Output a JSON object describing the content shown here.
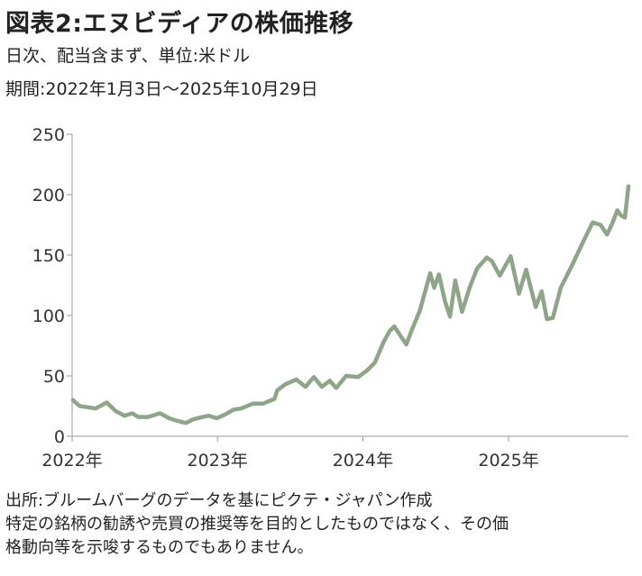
{
  "title": "図表2:エヌビディアの株価推移",
  "subtitle_1": "日次、配当含まず、単位:米ドル",
  "subtitle_2": "期間:2022年1月3日～2025年10月29日",
  "footer": {
    "source": "出所:ブルームバーグのデータを基にピクテ・ジャパン作成",
    "disclaimer_1": "特定の銘柄の勧誘や売買の推奨等を目的としたものではなく、その価",
    "disclaimer_2": "格動向等を示唆するものでもありません。"
  },
  "chart_data": {
    "type": "line",
    "title": "",
    "xlabel": "",
    "ylabel": "",
    "ylim": [
      0,
      250
    ],
    "yticks": [
      0,
      50,
      100,
      150,
      200,
      250
    ],
    "xlim": [
      "2022-01-01",
      "2025-10-29"
    ],
    "xticks": [
      {
        "date": "2022-01-01",
        "label": "2022年"
      },
      {
        "date": "2023-01-01",
        "label": "2023年"
      },
      {
        "date": "2024-01-01",
        "label": "2024年"
      },
      {
        "date": "2025-01-01",
        "label": "2025年"
      }
    ],
    "grid": false,
    "legend": "none",
    "series": [
      {
        "color": "#8fa58a",
        "points": [
          [
            "2022-01-03",
            30
          ],
          [
            "2022-01-20",
            25
          ],
          [
            "2022-02-10",
            24
          ],
          [
            "2022-03-01",
            23
          ],
          [
            "2022-03-29",
            28
          ],
          [
            "2022-04-20",
            21
          ],
          [
            "2022-05-12",
            17
          ],
          [
            "2022-06-01",
            19
          ],
          [
            "2022-06-16",
            16
          ],
          [
            "2022-07-10",
            16
          ],
          [
            "2022-08-10",
            19
          ],
          [
            "2022-09-01",
            15
          ],
          [
            "2022-09-20",
            13
          ],
          [
            "2022-10-13",
            11
          ],
          [
            "2022-11-01",
            14
          ],
          [
            "2022-11-25",
            16
          ],
          [
            "2022-12-10",
            17
          ],
          [
            "2022-12-30",
            15
          ],
          [
            "2023-01-20",
            18
          ],
          [
            "2023-02-10",
            22
          ],
          [
            "2023-03-01",
            23
          ],
          [
            "2023-03-31",
            27
          ],
          [
            "2023-04-25",
            27
          ],
          [
            "2023-05-24",
            31
          ],
          [
            "2023-05-31",
            38
          ],
          [
            "2023-06-20",
            43
          ],
          [
            "2023-07-18",
            47
          ],
          [
            "2023-08-10",
            41
          ],
          [
            "2023-08-31",
            49
          ],
          [
            "2023-09-20",
            41
          ],
          [
            "2023-10-10",
            46
          ],
          [
            "2023-10-26",
            40
          ],
          [
            "2023-11-20",
            50
          ],
          [
            "2023-12-20",
            49
          ],
          [
            "2024-01-10",
            54
          ],
          [
            "2024-01-31",
            61
          ],
          [
            "2024-02-22",
            78
          ],
          [
            "2024-03-08",
            87
          ],
          [
            "2024-03-20",
            91
          ],
          [
            "2024-04-19",
            76
          ],
          [
            "2024-05-03",
            88
          ],
          [
            "2024-05-23",
            104
          ],
          [
            "2024-06-18",
            135
          ],
          [
            "2024-06-28",
            123
          ],
          [
            "2024-07-10",
            134
          ],
          [
            "2024-07-25",
            112
          ],
          [
            "2024-08-07",
            99
          ],
          [
            "2024-08-20",
            129
          ],
          [
            "2024-09-06",
            103
          ],
          [
            "2024-09-25",
            123
          ],
          [
            "2024-10-14",
            139
          ],
          [
            "2024-11-07",
            148
          ],
          [
            "2024-11-20",
            145
          ],
          [
            "2024-12-10",
            133
          ],
          [
            "2025-01-06",
            149
          ],
          [
            "2025-01-27",
            118
          ],
          [
            "2025-02-14",
            138
          ],
          [
            "2025-03-10",
            107
          ],
          [
            "2025-03-25",
            120
          ],
          [
            "2025-04-07",
            97
          ],
          [
            "2025-04-22",
            98
          ],
          [
            "2025-05-12",
            123
          ],
          [
            "2025-06-10",
            142
          ],
          [
            "2025-07-10",
            163
          ],
          [
            "2025-07-31",
            177
          ],
          [
            "2025-08-20",
            175
          ],
          [
            "2025-09-05",
            167
          ],
          [
            "2025-09-18",
            176
          ],
          [
            "2025-10-01",
            187
          ],
          [
            "2025-10-10",
            183
          ],
          [
            "2025-10-20",
            181
          ],
          [
            "2025-10-29",
            207
          ]
        ]
      }
    ]
  }
}
